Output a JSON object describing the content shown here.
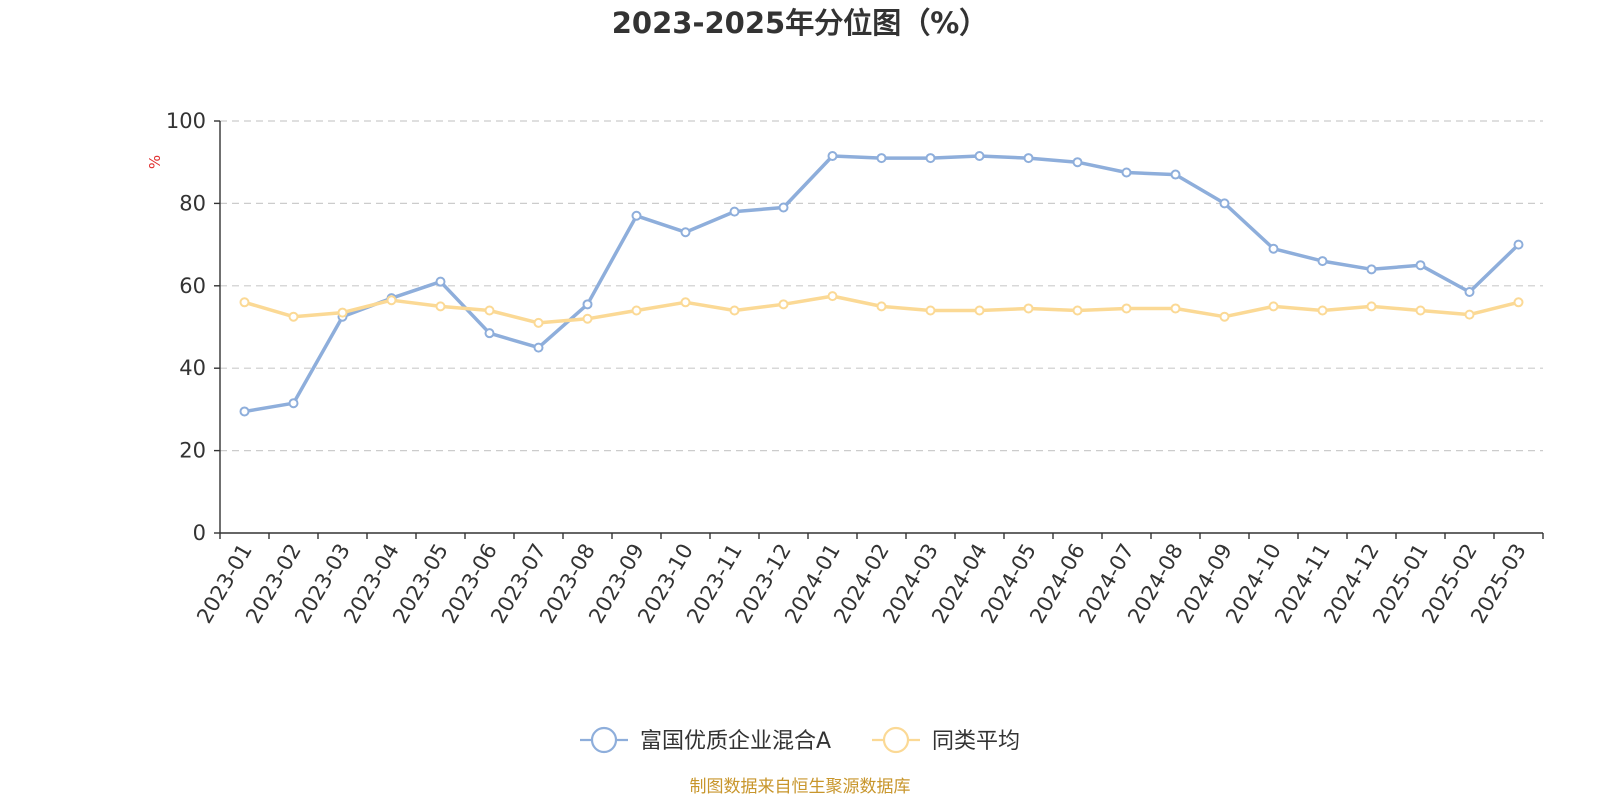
{
  "chart_data": {
    "type": "line",
    "title": "2023-2025年分位图（%）",
    "ylabel": "%",
    "xlabel": "",
    "ylim": [
      0,
      100
    ],
    "yticks": [
      0,
      20,
      40,
      60,
      80,
      100
    ],
    "grid": true,
    "legend_position": "bottom",
    "categories": [
      "2023-01",
      "2023-02",
      "2023-03",
      "2023-04",
      "2023-05",
      "2023-06",
      "2023-07",
      "2023-08",
      "2023-09",
      "2023-10",
      "2023-11",
      "2023-12",
      "2024-01",
      "2024-02",
      "2024-03",
      "2024-04",
      "2024-05",
      "2024-06",
      "2024-07",
      "2024-08",
      "2024-09",
      "2024-10",
      "2024-11",
      "2024-12",
      "2025-01",
      "2025-02",
      "2025-03"
    ],
    "series": [
      {
        "name": "富国优质企业混合A",
        "color": "#8eaedb",
        "values": [
          29.5,
          31.5,
          52.5,
          57,
          61,
          48.5,
          45,
          55.5,
          77,
          73,
          78,
          79,
          91.5,
          91,
          91,
          91.5,
          91,
          90,
          87.5,
          87,
          80,
          69,
          66,
          64,
          65,
          58.5,
          70
        ]
      },
      {
        "name": "同类平均",
        "color": "#fbd995",
        "values": [
          56,
          52.5,
          53.5,
          56.5,
          55,
          54,
          51,
          52,
          54,
          56,
          54,
          55.5,
          57.5,
          55,
          54,
          54,
          54.5,
          54,
          54.5,
          54.5,
          52.5,
          55,
          54,
          55,
          54,
          53,
          56
        ]
      }
    ]
  },
  "source": {
    "text": "制图数据来自恒生聚源数据库",
    "color": "#c8962c"
  },
  "colors": {
    "unit_label": "#e03030",
    "axis": "#333333",
    "grid": "#cccccc"
  }
}
